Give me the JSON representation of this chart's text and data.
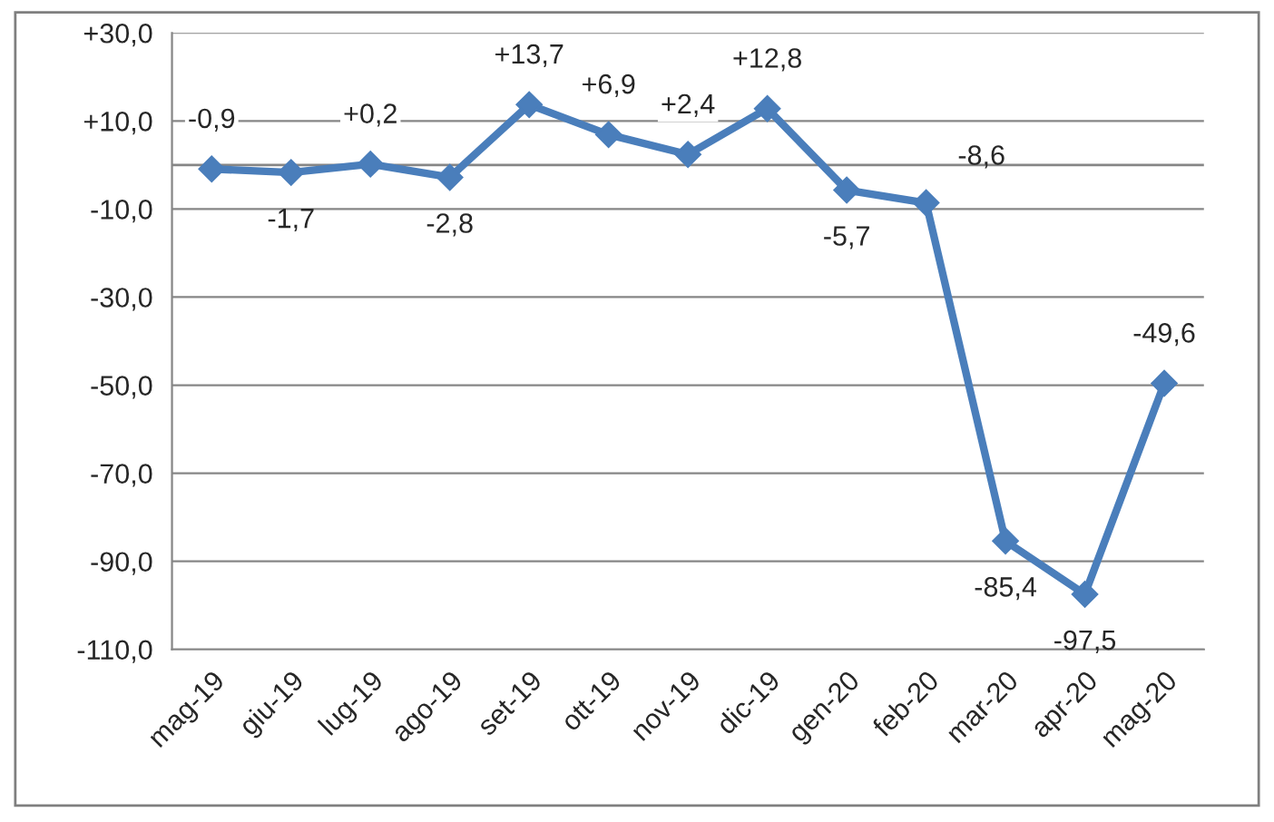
{
  "chart_data": {
    "type": "line",
    "categories": [
      "mag-19",
      "giu-19",
      "lug-19",
      "ago-19",
      "set-19",
      "ott-19",
      "nov-19",
      "dic-19",
      "gen-20",
      "feb-20",
      "mar-20",
      "apr-20",
      "mag-20"
    ],
    "series": [
      {
        "color": "#4a7ebb",
        "values": [
          -0.9,
          -1.7,
          0.2,
          -2.8,
          13.7,
          6.9,
          2.4,
          12.8,
          -5.7,
          -8.6,
          -85.4,
          -97.5,
          -49.6
        ],
        "value_labels": [
          "-0,9",
          "-1,7",
          "+0,2",
          "-2,8",
          "+13,7",
          "+6,9",
          "+2,4",
          "+12,8",
          "-5,7",
          "-8,6",
          "-85,4",
          "-97,5",
          "-49,6"
        ]
      }
    ],
    "ylim": [
      -110,
      30
    ],
    "yticks": [
      {
        "value": 30,
        "label": "+30,0"
      },
      {
        "value": 10,
        "label": "+10,0"
      },
      {
        "value": -10,
        "label": "-10,0"
      },
      {
        "value": -30,
        "label": "-30,0"
      },
      {
        "value": -50,
        "label": "-50,0"
      },
      {
        "value": -70,
        "label": "-70,0"
      },
      {
        "value": -90,
        "label": "-90,0"
      },
      {
        "value": -110,
        "label": "-110,0"
      }
    ],
    "ref_lines": [
      {
        "axis": "y",
        "value": 0,
        "color": "#868686"
      }
    ],
    "grid": "y",
    "marker": "diamond",
    "line_style": "solid",
    "legend": false
  }
}
